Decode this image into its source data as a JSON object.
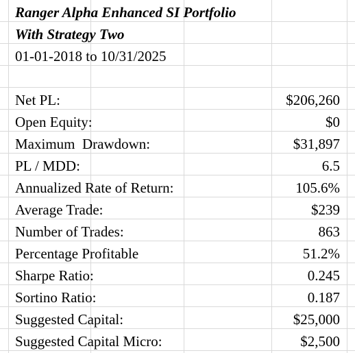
{
  "header": {
    "title_line1": "Ranger Alpha Enhanced SI Portfolio",
    "title_line2": "With Strategy Two",
    "date_range": "01-01-2018 to 10/31/2025"
  },
  "stats": [
    {
      "label": "Net PL:",
      "value": "$206,260"
    },
    {
      "label": "Open Equity:",
      "value": "$0"
    },
    {
      "label": "Maximum  Drawdown:",
      "value": "$31,897"
    },
    {
      "label": "PL / MDD:",
      "value": "6.5"
    },
    {
      "label": "Annualized Rate of Return:",
      "value": "105.6%"
    },
    {
      "label": "Average Trade:",
      "value": "$239"
    },
    {
      "label": "Number of Trades:",
      "value": "863"
    },
    {
      "label": "Percentage Profitable",
      "value": "51.2%"
    },
    {
      "label": "Sharpe Ratio:",
      "value": "0.245"
    },
    {
      "label": "Sortino Ratio:",
      "value": "0.187"
    },
    {
      "label": "Suggested Capital:",
      "value": "$25,000"
    },
    {
      "label": "Suggested Capital Micro:",
      "value": "$2,500"
    }
  ]
}
